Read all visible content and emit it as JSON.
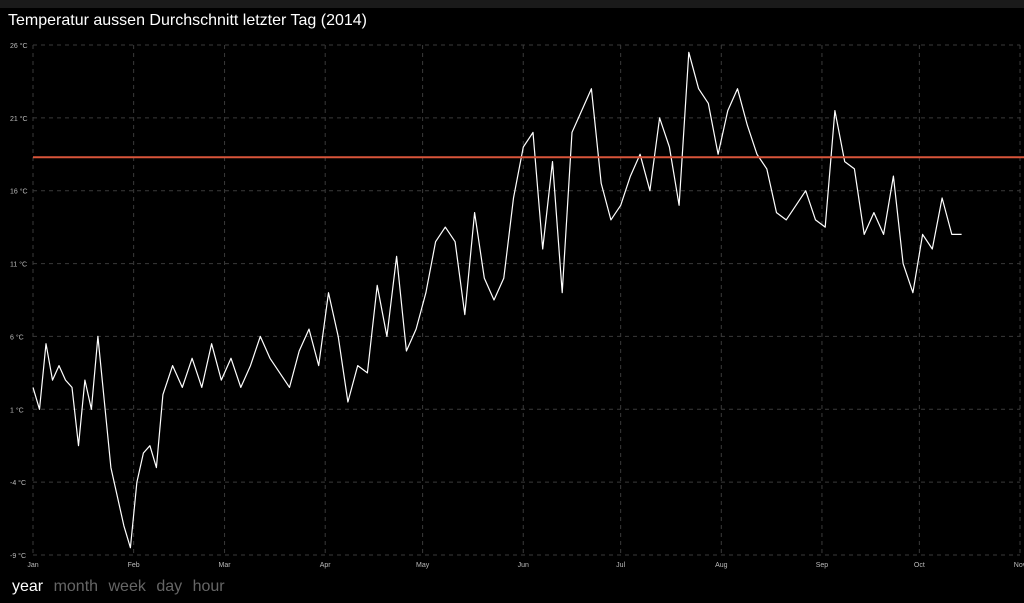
{
  "title": "Temperatur aussen Durchschnitt letzter Tag (2014)",
  "zoom": {
    "items": [
      "year",
      "month",
      "week",
      "day",
      "hour"
    ],
    "active": 0
  },
  "colors": {
    "line": "#ffffff",
    "reference": "#d9553a",
    "grid": "#3a3a3a",
    "background": "#000000"
  },
  "chart_data": {
    "type": "line",
    "title": "Temperatur aussen Durchschnitt letzter Tag (2014)",
    "xlabel": "",
    "ylabel": "",
    "x_range": [
      "2014-01-01",
      "2014-11-01"
    ],
    "ylim": [
      -9,
      26
    ],
    "y_ticks": [
      -9,
      -4,
      1,
      6,
      11,
      16,
      21,
      26
    ],
    "y_tick_labels": [
      "-9 °C",
      "-4 °C",
      "1 °C",
      "6 °C",
      "11 °C",
      "16 °C",
      "21 °C",
      "26 °C"
    ],
    "x_ticks": [
      "2014-01-01",
      "2014-02-01",
      "2014-03-01",
      "2014-04-01",
      "2014-05-01",
      "2014-06-01",
      "2014-07-01",
      "2014-08-01",
      "2014-09-01",
      "2014-10-01",
      "2014-11-01"
    ],
    "x_tick_labels": [
      "Jan",
      "Feb",
      "Mar",
      "Apr",
      "May",
      "Jun",
      "Jul",
      "Aug",
      "Sep",
      "Oct",
      "Nov"
    ],
    "grid": true,
    "reference_line": {
      "value": 18.3
    },
    "series": [
      {
        "x": [
          "2014-01-01",
          "2014-01-03",
          "2014-01-05",
          "2014-01-07",
          "2014-01-09",
          "2014-01-11",
          "2014-01-13",
          "2014-01-15",
          "2014-01-17",
          "2014-01-19",
          "2014-01-21",
          "2014-01-23",
          "2014-01-25",
          "2014-01-27",
          "2014-01-29",
          "2014-01-31",
          "2014-02-02",
          "2014-02-04",
          "2014-02-06",
          "2014-02-08",
          "2014-02-10",
          "2014-02-13",
          "2014-02-16",
          "2014-02-19",
          "2014-02-22",
          "2014-02-25",
          "2014-02-28",
          "2014-03-03",
          "2014-03-06",
          "2014-03-09",
          "2014-03-12",
          "2014-03-15",
          "2014-03-18",
          "2014-03-21",
          "2014-03-24",
          "2014-03-27",
          "2014-03-30",
          "2014-04-02",
          "2014-04-05",
          "2014-04-08",
          "2014-04-11",
          "2014-04-14",
          "2014-04-17",
          "2014-04-20",
          "2014-04-23",
          "2014-04-26",
          "2014-04-29",
          "2014-05-02",
          "2014-05-05",
          "2014-05-08",
          "2014-05-11",
          "2014-05-14",
          "2014-05-17",
          "2014-05-20",
          "2014-05-23",
          "2014-05-26",
          "2014-05-29",
          "2014-06-01",
          "2014-06-04",
          "2014-06-07",
          "2014-06-10",
          "2014-06-13",
          "2014-06-16",
          "2014-06-19",
          "2014-06-22",
          "2014-06-25",
          "2014-06-28",
          "2014-07-01",
          "2014-07-04",
          "2014-07-07",
          "2014-07-10",
          "2014-07-13",
          "2014-07-16",
          "2014-07-19",
          "2014-07-22",
          "2014-07-25",
          "2014-07-28",
          "2014-07-31",
          "2014-08-03",
          "2014-08-06",
          "2014-08-09",
          "2014-08-12",
          "2014-08-15",
          "2014-08-18",
          "2014-08-21",
          "2014-08-24",
          "2014-08-27",
          "2014-08-30",
          "2014-09-02",
          "2014-09-05",
          "2014-09-08",
          "2014-09-11",
          "2014-09-14",
          "2014-09-17",
          "2014-09-20",
          "2014-09-23",
          "2014-09-26",
          "2014-09-29",
          "2014-10-02",
          "2014-10-05",
          "2014-10-08",
          "2014-10-11",
          "2014-10-14"
        ],
        "y": [
          2.5,
          1.0,
          5.5,
          3.0,
          4.0,
          3.0,
          2.5,
          -1.5,
          3.0,
          1.0,
          6.0,
          1.5,
          -3.0,
          -5.0,
          -7.0,
          -8.5,
          -4.0,
          -2.0,
          -1.5,
          -3.0,
          2.0,
          4.0,
          2.5,
          4.5,
          2.5,
          5.5,
          3.0,
          4.5,
          2.5,
          4.0,
          6.0,
          4.5,
          3.5,
          2.5,
          5.0,
          6.5,
          4.0,
          9.0,
          6.0,
          1.5,
          4.0,
          3.5,
          9.5,
          6.0,
          11.5,
          5.0,
          6.5,
          9.0,
          12.5,
          13.5,
          12.5,
          7.5,
          14.5,
          10.0,
          8.5,
          10.0,
          15.5,
          19.0,
          20.0,
          12.0,
          18.0,
          9.0,
          20.0,
          21.5,
          23.0,
          16.5,
          14.0,
          15.0,
          17.0,
          18.5,
          16.0,
          21.0,
          19.0,
          15.0,
          25.5,
          23.0,
          22.0,
          18.5,
          21.5,
          23.0,
          20.5,
          18.5,
          17.5,
          14.5,
          14.0,
          15.0,
          16.0,
          14.0,
          13.5,
          21.5,
          18.0,
          17.5,
          13.0,
          14.5,
          13.0,
          17.0,
          11.0,
          9.0,
          13.0,
          12.0,
          15.5,
          13.0,
          13.0
        ]
      }
    ]
  }
}
